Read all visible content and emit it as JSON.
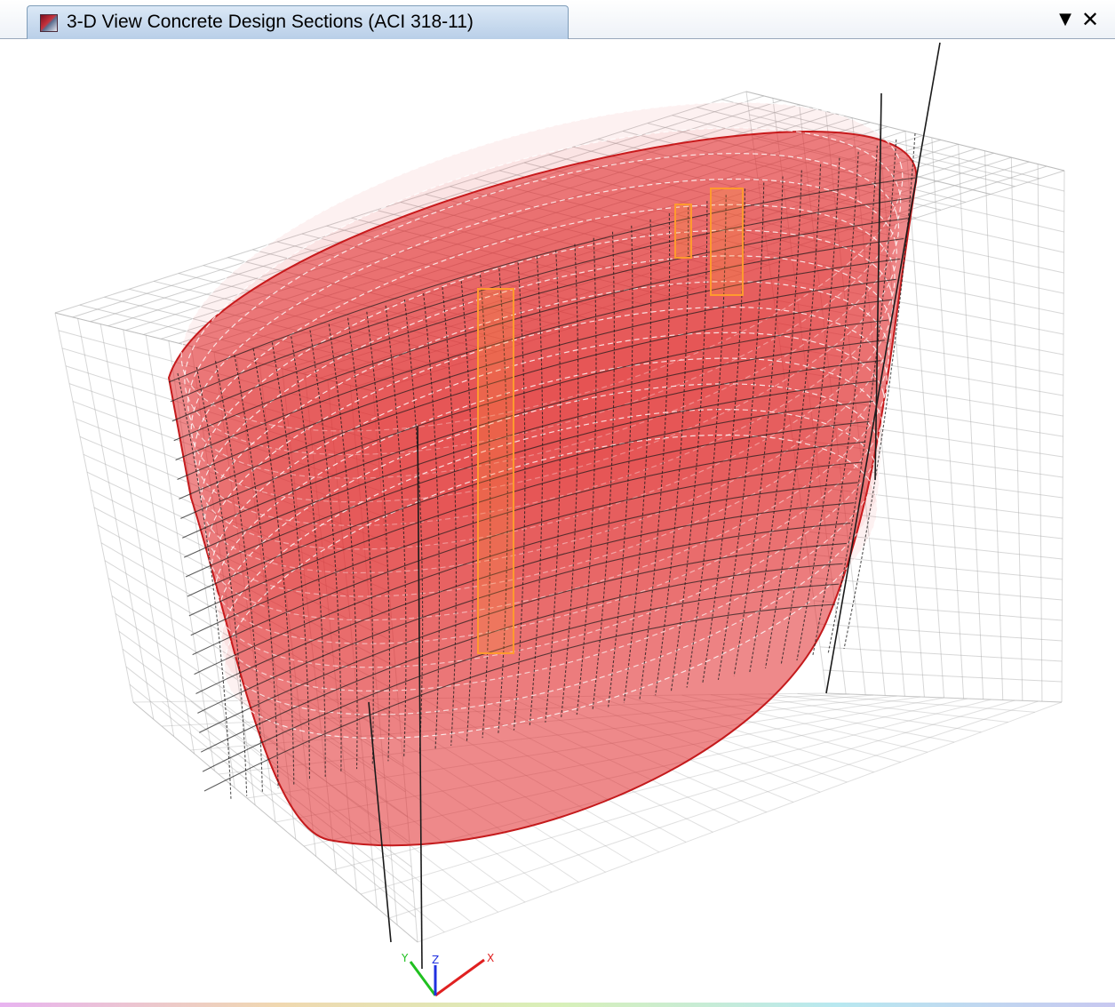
{
  "window": {
    "tab_title": "3-D View  Concrete Design Sections  (ACI 318-11)",
    "tab_icon": "model-view-icon",
    "dropdown_icon": "dropdown-arrow-icon",
    "dropdown_glyph": "▼",
    "close_icon": "close-icon",
    "close_glyph": "✕"
  },
  "viewport": {
    "view_type": "3-D View",
    "background": "#ffffff",
    "colors": {
      "frame_grid": "#a8a8a8",
      "shell_fill": "#e0282a",
      "shell_edge": "#c41a1c",
      "design_frame": "#1a1a1a",
      "highlight": "#ff9a2e",
      "axis_x": "#e02020",
      "axis_y": "#20c020",
      "axis_z": "#2030e0"
    },
    "axes": {
      "x_label": "X",
      "y_label": "Y",
      "z_label": "Z"
    }
  }
}
